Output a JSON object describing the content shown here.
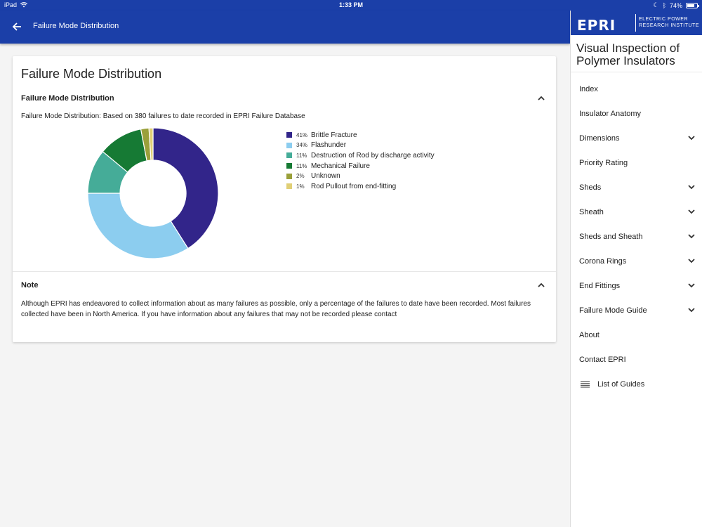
{
  "status_bar": {
    "device": "iPad",
    "time": "1:33 PM",
    "battery": "74%",
    "battery_level": 0.74
  },
  "app_bar": {
    "title": "Failure Mode Distribution",
    "back_icon": "arrow-left-icon"
  },
  "card": {
    "heading": "Failure Mode Distribution",
    "section_title": "Failure Mode Distribution",
    "description": "Failure Mode Distribution: Based on 380 failures to date recorded in EPRI Failure Database",
    "note_title": "Note",
    "note_text": "Although EPRI has endeavored to collect information about as many failures as possible, only a percentage of the failures to date have been recorded. Most failures collected have been in North America. If you have information about any failures that may not be recorded please contact"
  },
  "chart_data": {
    "type": "pie",
    "title": "",
    "categories": [
      "Brittle Fracture",
      "Flashunder",
      "Destruction of Rod by discharge activity",
      "Mechanical Failure",
      "Unknown",
      "Rod Pullout from end-fitting"
    ],
    "values": [
      41,
      34,
      11,
      11,
      2,
      1
    ],
    "labels": [
      "41%",
      "34%",
      "11%",
      "11%",
      "2%",
      "1%"
    ],
    "colors": [
      "#32258a",
      "#8ccdef",
      "#45ac98",
      "#167a34",
      "#9aa03a",
      "#e0cf76"
    ],
    "legend_position": "right"
  },
  "drawer": {
    "logo": "EPRI",
    "logo_sub_1": "ELECTRIC POWER",
    "logo_sub_2": "RESEARCH INSTITUTE",
    "app_title": "Visual Inspection of Polymer Insulators",
    "items": [
      {
        "label": "Index",
        "expandable": false
      },
      {
        "label": "Insulator Anatomy",
        "expandable": false
      },
      {
        "label": "Dimensions",
        "expandable": true
      },
      {
        "label": "Priority Rating",
        "expandable": false
      },
      {
        "label": "Sheds",
        "expandable": true
      },
      {
        "label": "Sheath",
        "expandable": true
      },
      {
        "label": "Sheds and Sheath",
        "expandable": true
      },
      {
        "label": "Corona Rings",
        "expandable": true
      },
      {
        "label": "End Fittings",
        "expandable": true
      },
      {
        "label": "Failure Mode Guide",
        "expandable": true
      },
      {
        "label": "About",
        "expandable": false
      },
      {
        "label": "Contact EPRI",
        "expandable": false
      }
    ],
    "list_of_guides": "List of Guides"
  }
}
